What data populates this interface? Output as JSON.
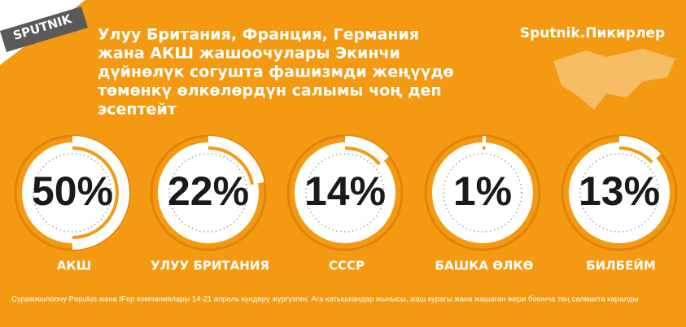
{
  "logo": "SPUTNIK",
  "brand": "Sputnik.Пикирлер",
  "chart_data": {
    "type": "gauge",
    "title": [
      "Улуу Британия, Франция, Германия",
      "жана АКШ жашоочулары Экинчи",
      "дүйнөлүк согушта фашизмди жеңүүдө",
      "төмөнкү өлкөлөрдүн салымы чоң деп",
      "эсептейт"
    ],
    "categories": [
      "АКШ",
      "УЛУУ БРИТАНИЯ",
      "СССР",
      "БАШКА ӨЛКӨ",
      "БИЛБЕЙМ"
    ],
    "values": [
      50,
      22,
      14,
      1,
      13
    ],
    "value_labels": [
      "50%",
      "22%",
      "14%",
      "1%",
      "13%"
    ],
    "ylim": [
      0,
      100
    ],
    "color": "#f39a12",
    "note": "Сурамжылоону Populus жана IFop компаниялары 14-21 апрель күндөрү жүргүзгөн. Ага катышкандар жынысы, жаш курагы жана жашаган жери боюнча тең салмакта каралды"
  }
}
